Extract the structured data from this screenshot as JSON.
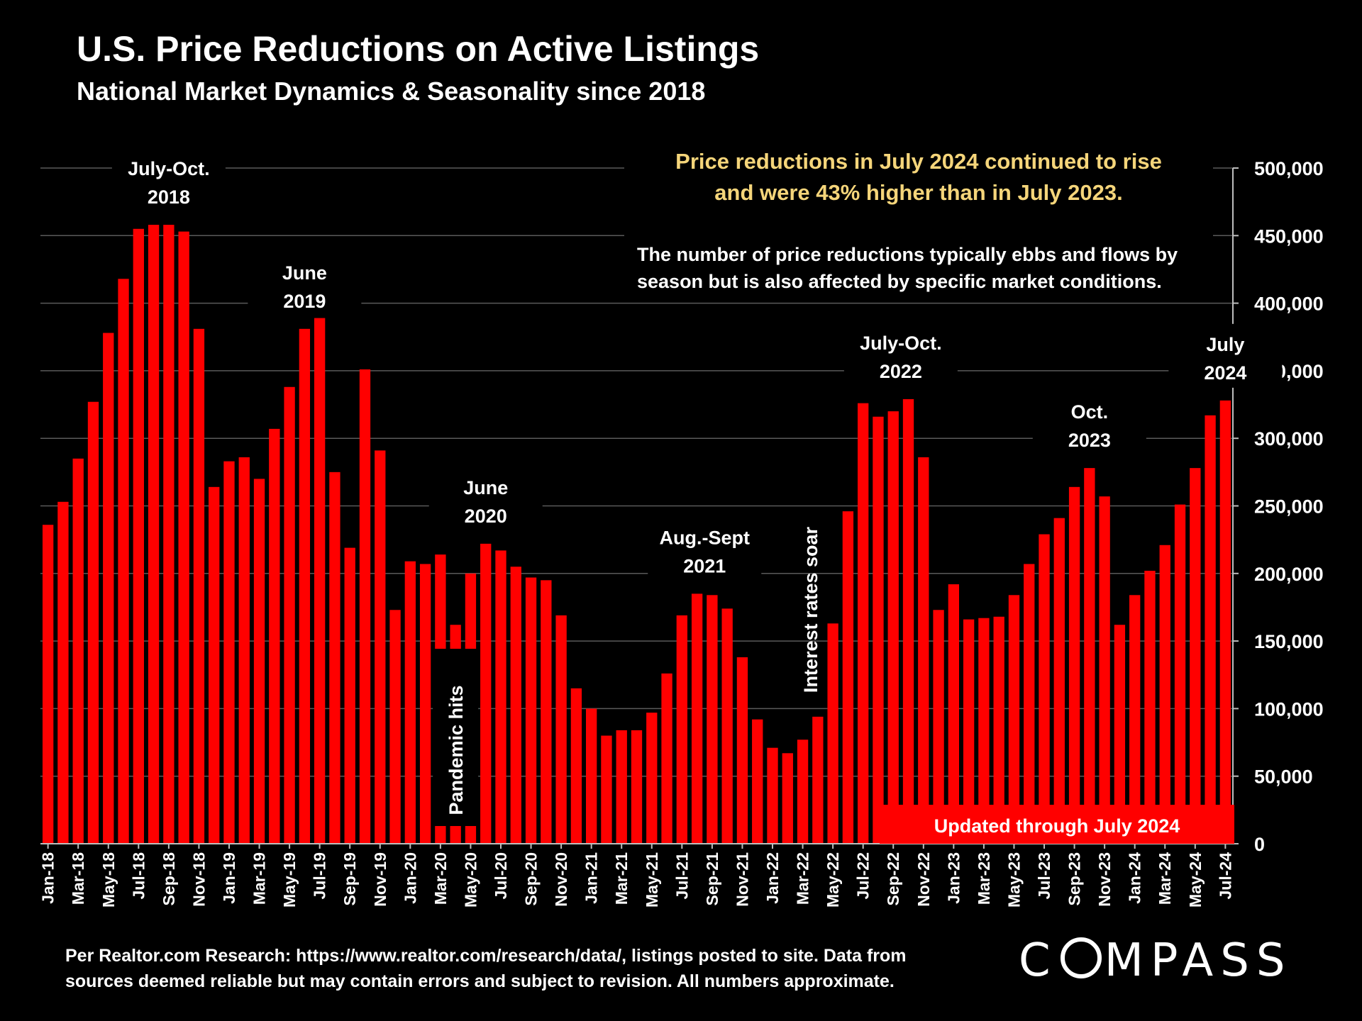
{
  "header": {
    "title": "U.S. Price Reductions on Active Listings",
    "subtitle": "National Market Dynamics & Seasonality since 2018"
  },
  "callout": {
    "line1": "Price reductions in July 2024 continued to rise",
    "line2": "and were 43% higher than in July 2023.",
    "color": "#f5d57a"
  },
  "note": {
    "line1": "The number of price reductions typically ebbs and flows by",
    "line2": "season but is also affected by specific market conditions."
  },
  "footer": {
    "line1": "Per Realtor.com Research:  https://www.realtor.com/research/data/, listings posted to site. Data from",
    "line2": "sources deemed reliable but may contain errors and subject to revision. All numbers approximate."
  },
  "logo": {
    "before": "C",
    "after": "MPASS"
  },
  "chart_data": {
    "type": "bar",
    "bar_color": "#ff0000",
    "grid": true,
    "ylim": [
      0,
      500000
    ],
    "yticks": [
      "0",
      "50,000",
      "100,000",
      "150,000",
      "200,000",
      "250,000",
      "300,000",
      "350,000",
      "400,000",
      "450,000",
      "500,000"
    ],
    "xlabel": "",
    "ylabel": "",
    "categories": [
      "Jan-18",
      "Feb-18",
      "Mar-18",
      "Apr-18",
      "May-18",
      "Jun-18",
      "Jul-18",
      "Aug-18",
      "Sep-18",
      "Oct-18",
      "Nov-18",
      "Dec-18",
      "Jan-19",
      "Feb-19",
      "Mar-19",
      "Apr-19",
      "May-19",
      "Jun-19",
      "Jul-19",
      "Aug-19",
      "Sep-19",
      "Oct-19",
      "Nov-19",
      "Dec-19",
      "Jan-20",
      "Feb-20",
      "Mar-20",
      "Apr-20",
      "May-20",
      "Jun-20",
      "Jul-20",
      "Aug-20",
      "Sep-20",
      "Oct-20",
      "Nov-20",
      "Dec-20",
      "Jan-21",
      "Feb-21",
      "Mar-21",
      "Apr-21",
      "May-21",
      "Jun-21",
      "Jul-21",
      "Aug-21",
      "Sep-21",
      "Oct-21",
      "Nov-21",
      "Dec-21",
      "Jan-22",
      "Feb-22",
      "Mar-22",
      "Apr-22",
      "May-22",
      "Jun-22",
      "Jul-22",
      "Aug-22",
      "Sep-22",
      "Oct-22",
      "Nov-22",
      "Dec-22",
      "Jan-23",
      "Feb-23",
      "Mar-23",
      "Apr-23",
      "May-23",
      "Jun-23",
      "Jul-23",
      "Aug-23",
      "Sep-23",
      "Oct-23",
      "Nov-23",
      "Dec-23",
      "Jan-24",
      "Feb-24",
      "Mar-24",
      "Apr-24",
      "May-24",
      "Jun-24",
      "Jul-24"
    ],
    "xtick_labels": [
      "Jan-18",
      "Mar-18",
      "May-18",
      "Jul-18",
      "Sep-18",
      "Nov-18",
      "Jan-19",
      "Mar-19",
      "May-19",
      "Jul-19",
      "Sep-19",
      "Nov-19",
      "Jan-20",
      "Mar-20",
      "May-20",
      "Jul-20",
      "Sep-20",
      "Nov-20",
      "Jan-21",
      "Mar-21",
      "May-21",
      "Jul-21",
      "Sep-21",
      "Nov-21",
      "Jan-22",
      "Mar-22",
      "May-22",
      "Jul-22",
      "Sep-22",
      "Nov-22",
      "Jan-23",
      "Mar-23",
      "May-23",
      "Jul-23",
      "Sep-23",
      "Nov-23",
      "Jan-24",
      "Mar-24",
      "May-24",
      "Jul-24"
    ],
    "values": [
      236000,
      253000,
      285000,
      327000,
      378000,
      418000,
      455000,
      458000,
      458000,
      453000,
      381000,
      264000,
      283000,
      286000,
      270000,
      307000,
      338000,
      381000,
      389000,
      275000,
      219000,
      351000,
      291000,
      173000,
      209000,
      207000,
      214000,
      162000,
      200000,
      222000,
      217000,
      205000,
      197000,
      195000,
      169000,
      115000,
      100000,
      80000,
      84000,
      84000,
      97000,
      126000,
      169000,
      185000,
      184000,
      174000,
      138000,
      92000,
      71000,
      67000,
      77000,
      94000,
      163000,
      246000,
      326000,
      316000,
      320000,
      329000,
      286000,
      173000,
      192000,
      166000,
      167000,
      168000,
      184000,
      207000,
      229000,
      241000,
      264000,
      278000,
      257000,
      162000,
      184000,
      202000,
      221000,
      251000,
      278000,
      317000,
      328000
    ],
    "annotations": [
      {
        "l1": "July-Oct.",
        "l2": "2018",
        "bar": 8
      },
      {
        "l1": "June",
        "l2": "2019",
        "bar": 17
      },
      {
        "l1": "June",
        "l2": "2020",
        "bar": 29
      },
      {
        "l1": "Aug.-Sept",
        "l2": "2021",
        "bar": 43.5
      },
      {
        "l1": "July-Oct.",
        "l2": "2022",
        "bar": 56.5
      },
      {
        "l1": "Oct.",
        "l2": "2023",
        "bar": 69
      },
      {
        "l1": "July",
        "l2": "2024",
        "bar": 78
      }
    ],
    "vertical_labels": [
      {
        "text": "Pandemic hits",
        "bar": 27
      },
      {
        "text": "Interest rates soar",
        "bar": 50.5
      }
    ],
    "banner": "Updated through July 2024"
  }
}
